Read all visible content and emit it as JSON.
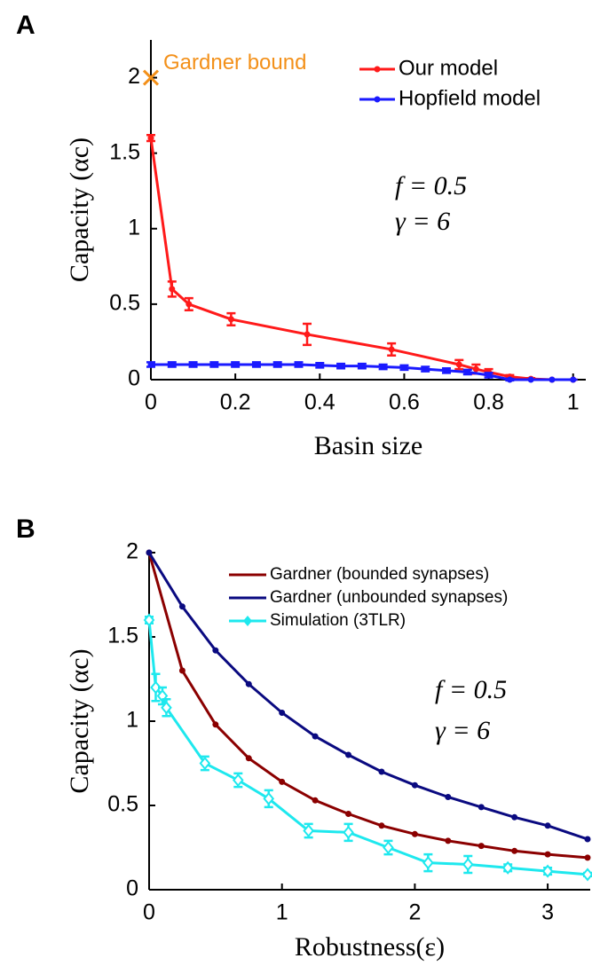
{
  "chart_data": [
    {
      "type": "line",
      "panel_label": "A",
      "x_label": "Basin size",
      "y_label": "Capacity (αc)",
      "xlim": [
        0,
        1.03
      ],
      "ylim": [
        0,
        2.25
      ],
      "xticks": [
        0,
        0.2,
        0.4,
        0.6,
        0.8,
        1
      ],
      "yticks": [
        0,
        0.5,
        1,
        1.5,
        2
      ],
      "annotations": [
        "f = 0.5",
        "γ = 6"
      ],
      "gardner_bound": {
        "label": "Gardner bound",
        "x": 0,
        "y": 2,
        "color": "#f39019"
      },
      "series": [
        {
          "name": "Our model",
          "color": "#ff1a1a",
          "x": [
            0,
            0.05,
            0.09,
            0.19,
            0.37,
            0.57,
            0.73,
            0.77,
            0.8,
            0.85,
            0.9,
            0.95,
            1
          ],
          "values": [
            1.6,
            0.6,
            0.5,
            0.4,
            0.3,
            0.2,
            0.1,
            0.07,
            0.05,
            0.02,
            0.005,
            0,
            0
          ],
          "errors": [
            0.02,
            0.05,
            0.04,
            0.04,
            0.07,
            0.04,
            0.03,
            0.03,
            0.02,
            0.01,
            0.005,
            0,
            0
          ]
        },
        {
          "name": "Hopfield model",
          "color": "#1a1aff",
          "x": [
            0,
            0.05,
            0.1,
            0.15,
            0.2,
            0.25,
            0.3,
            0.35,
            0.4,
            0.45,
            0.5,
            0.55,
            0.6,
            0.65,
            0.7,
            0.75,
            0.8,
            0.85,
            0.9,
            0.95,
            1
          ],
          "values": [
            0.1,
            0.1,
            0.1,
            0.1,
            0.1,
            0.1,
            0.1,
            0.1,
            0.095,
            0.09,
            0.09,
            0.085,
            0.08,
            0.07,
            0.06,
            0.05,
            0.03,
            0,
            0,
            0,
            0
          ],
          "errors": [
            0.015,
            0.015,
            0.015,
            0.015,
            0.015,
            0.015,
            0.015,
            0.015,
            0.015,
            0.015,
            0.015,
            0.015,
            0.015,
            0.015,
            0.015,
            0.015,
            0.015,
            0.005,
            0,
            0,
            0
          ]
        }
      ]
    },
    {
      "type": "line",
      "panel_label": "B",
      "x_label": "Robustness(ε)",
      "y_label": "Capacity (αc)",
      "xlim": [
        0,
        3.32
      ],
      "ylim": [
        0,
        2
      ],
      "xticks": [
        0,
        1,
        2,
        3
      ],
      "yticks": [
        0,
        0.5,
        1,
        1.5,
        2
      ],
      "annotations": [
        "f = 0.5",
        "γ = 6"
      ],
      "series": [
        {
          "name": "Gardner (bounded synapses)",
          "color": "#8b0000",
          "x": [
            0,
            0.25,
            0.5,
            0.75,
            1,
            1.25,
            1.5,
            1.75,
            2,
            2.25,
            2.5,
            2.75,
            3,
            3.3
          ],
          "values": [
            2,
            1.3,
            0.98,
            0.78,
            0.64,
            0.53,
            0.45,
            0.38,
            0.33,
            0.29,
            0.26,
            0.23,
            0.21,
            0.19
          ]
        },
        {
          "name": "Gardner (unbounded synapses)",
          "color": "#0a0a80",
          "x": [
            0,
            0.25,
            0.5,
            0.75,
            1,
            1.25,
            1.5,
            1.75,
            2,
            2.25,
            2.5,
            2.75,
            3,
            3.3
          ],
          "values": [
            2,
            1.68,
            1.42,
            1.22,
            1.05,
            0.91,
            0.8,
            0.7,
            0.62,
            0.55,
            0.49,
            0.43,
            0.38,
            0.3
          ]
        },
        {
          "name": "Simulation (3TLR)",
          "color": "#1ee8ee",
          "marker": "diamond",
          "x": [
            0,
            0.05,
            0.1,
            0.13,
            0.42,
            0.67,
            0.9,
            1.2,
            1.5,
            1.8,
            2.1,
            2.4,
            2.7,
            3,
            3.3
          ],
          "values": [
            1.6,
            1.2,
            1.15,
            1.08,
            0.75,
            0.65,
            0.54,
            0.35,
            0.34,
            0.25,
            0.16,
            0.15,
            0.13,
            0.11,
            0.09
          ],
          "errors": [
            0.02,
            0.08,
            0.05,
            0.05,
            0.04,
            0.04,
            0.05,
            0.04,
            0.05,
            0.04,
            0.05,
            0.05,
            0.02,
            0.02,
            0.01
          ]
        }
      ]
    }
  ]
}
